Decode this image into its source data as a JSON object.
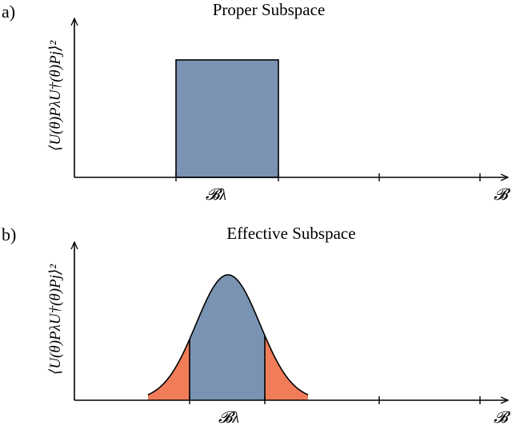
{
  "panels": [
    {
      "label": "a)",
      "title": "Proper Subspace",
      "ylabel": "⟨U(θ)PλU†(θ)Pj⟩²",
      "tick_label": "𝓑λ",
      "x_end_label": "𝓑",
      "shape": "rectangle",
      "fill_color": "#7b93b3"
    },
    {
      "label": "b)",
      "title": "Effective Subspace",
      "ylabel": "⟨U(θ)PλU†(θ)Pj⟩²",
      "tick_label": "𝓑λ",
      "x_end_label": "𝓑",
      "shape": "gaussian",
      "fill_color": "#7b93b3",
      "tail_color": "#f07c58"
    }
  ]
}
